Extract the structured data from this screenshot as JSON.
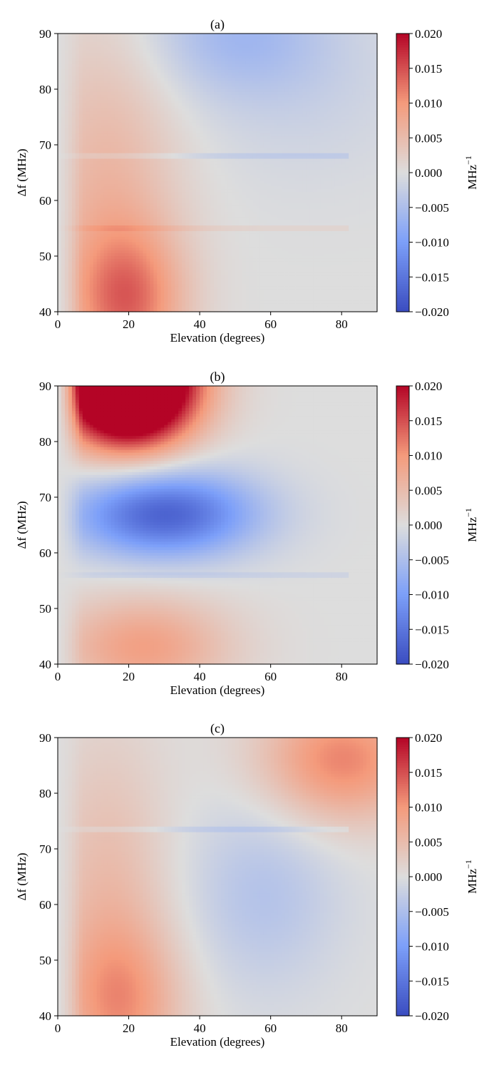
{
  "chart_data": [
    {
      "type": "heatmap",
      "title": "(a)",
      "xlabel": "Elevation (degrees)",
      "ylabel": "Δf (MHz)",
      "xlim": [
        0,
        90
      ],
      "ylim": [
        40,
        90
      ],
      "xticks": [
        "0",
        "20",
        "40",
        "60",
        "80"
      ],
      "yticks": [
        "40",
        "50",
        "60",
        "70",
        "80",
        "90"
      ],
      "colorbar": {
        "label": "MHz",
        "label_exp": "−1",
        "range": [
          -0.02,
          0.02
        ],
        "ticks": [
          "−0.020",
          "−0.015",
          "−0.010",
          "−0.005",
          "0.000",
          "0.005",
          "0.010",
          "0.015",
          "0.020"
        ],
        "colormap": "coolwarm"
      },
      "features": [
        {
          "x": 20,
          "y": 42,
          "amp": 0.0105,
          "sx": 11,
          "sy": 9
        },
        {
          "x": 14,
          "y": 60,
          "amp": 0.006,
          "sx": 14,
          "sy": 22
        },
        {
          "x": 50,
          "y": 90,
          "amp": -0.0055,
          "sx": 18,
          "sy": 8
        },
        {
          "x": 70,
          "y": 80,
          "amp": -0.0018,
          "sx": 22,
          "sy": 12
        }
      ],
      "stripes": [
        {
          "y": 67.8,
          "amp": -0.002
        },
        {
          "y": 55.0,
          "amp": 0.0015
        }
      ]
    },
    {
      "type": "heatmap",
      "title": "(b)",
      "xlabel": "Elevation (degrees)",
      "ylabel": "Δf (MHz)",
      "xlim": [
        0,
        90
      ],
      "ylim": [
        40,
        90
      ],
      "xticks": [
        "0",
        "20",
        "40",
        "60",
        "80"
      ],
      "yticks": [
        "40",
        "50",
        "60",
        "70",
        "80",
        "90"
      ],
      "colorbar": {
        "label": "MHz",
        "label_exp": "−1",
        "range": [
          -0.02,
          0.02
        ],
        "ticks": [
          "−0.020",
          "−0.015",
          "−0.010",
          "−0.005",
          "0.000",
          "0.005",
          "0.010",
          "0.015",
          "0.020"
        ],
        "colormap": "coolwarm"
      },
      "features": [
        {
          "x": 20,
          "y": 91,
          "amp": 0.045,
          "sx": 13,
          "sy": 8
        },
        {
          "x": 30,
          "y": 67,
          "amp": -0.0175,
          "sx": 18,
          "sy": 5.5
        },
        {
          "x": 24,
          "y": 43,
          "amp": 0.009,
          "sx": 17,
          "sy": 6.5
        }
      ],
      "stripes": [
        {
          "y": 56.0,
          "amp": -0.0015
        }
      ]
    },
    {
      "type": "heatmap",
      "title": "(c)",
      "xlabel": "Elevation (degrees)",
      "ylabel": "Δf (MHz)",
      "xlim": [
        0,
        90
      ],
      "ylim": [
        40,
        90
      ],
      "xticks": [
        "0",
        "20",
        "40",
        "60",
        "80"
      ],
      "yticks": [
        "40",
        "50",
        "60",
        "70",
        "80",
        "90"
      ],
      "colorbar": {
        "label": "MHz",
        "label_exp": "−1",
        "range": [
          -0.02,
          0.02
        ],
        "ticks": [
          "−0.020",
          "−0.015",
          "−0.010",
          "−0.005",
          "0.000",
          "0.005",
          "0.010",
          "0.015",
          "0.020"
        ],
        "colormap": "coolwarm"
      },
      "features": [
        {
          "x": 18,
          "y": 42,
          "amp": 0.0085,
          "sx": 12,
          "sy": 10
        },
        {
          "x": 14,
          "y": 62,
          "amp": 0.005,
          "sx": 12,
          "sy": 20
        },
        {
          "x": 80,
          "y": 86,
          "amp": 0.0115,
          "sx": 16,
          "sy": 8
        },
        {
          "x": 58,
          "y": 62,
          "amp": -0.0042,
          "sx": 15,
          "sy": 12
        }
      ],
      "stripes": [
        {
          "y": 73.6,
          "amp": -0.002
        }
      ]
    }
  ]
}
